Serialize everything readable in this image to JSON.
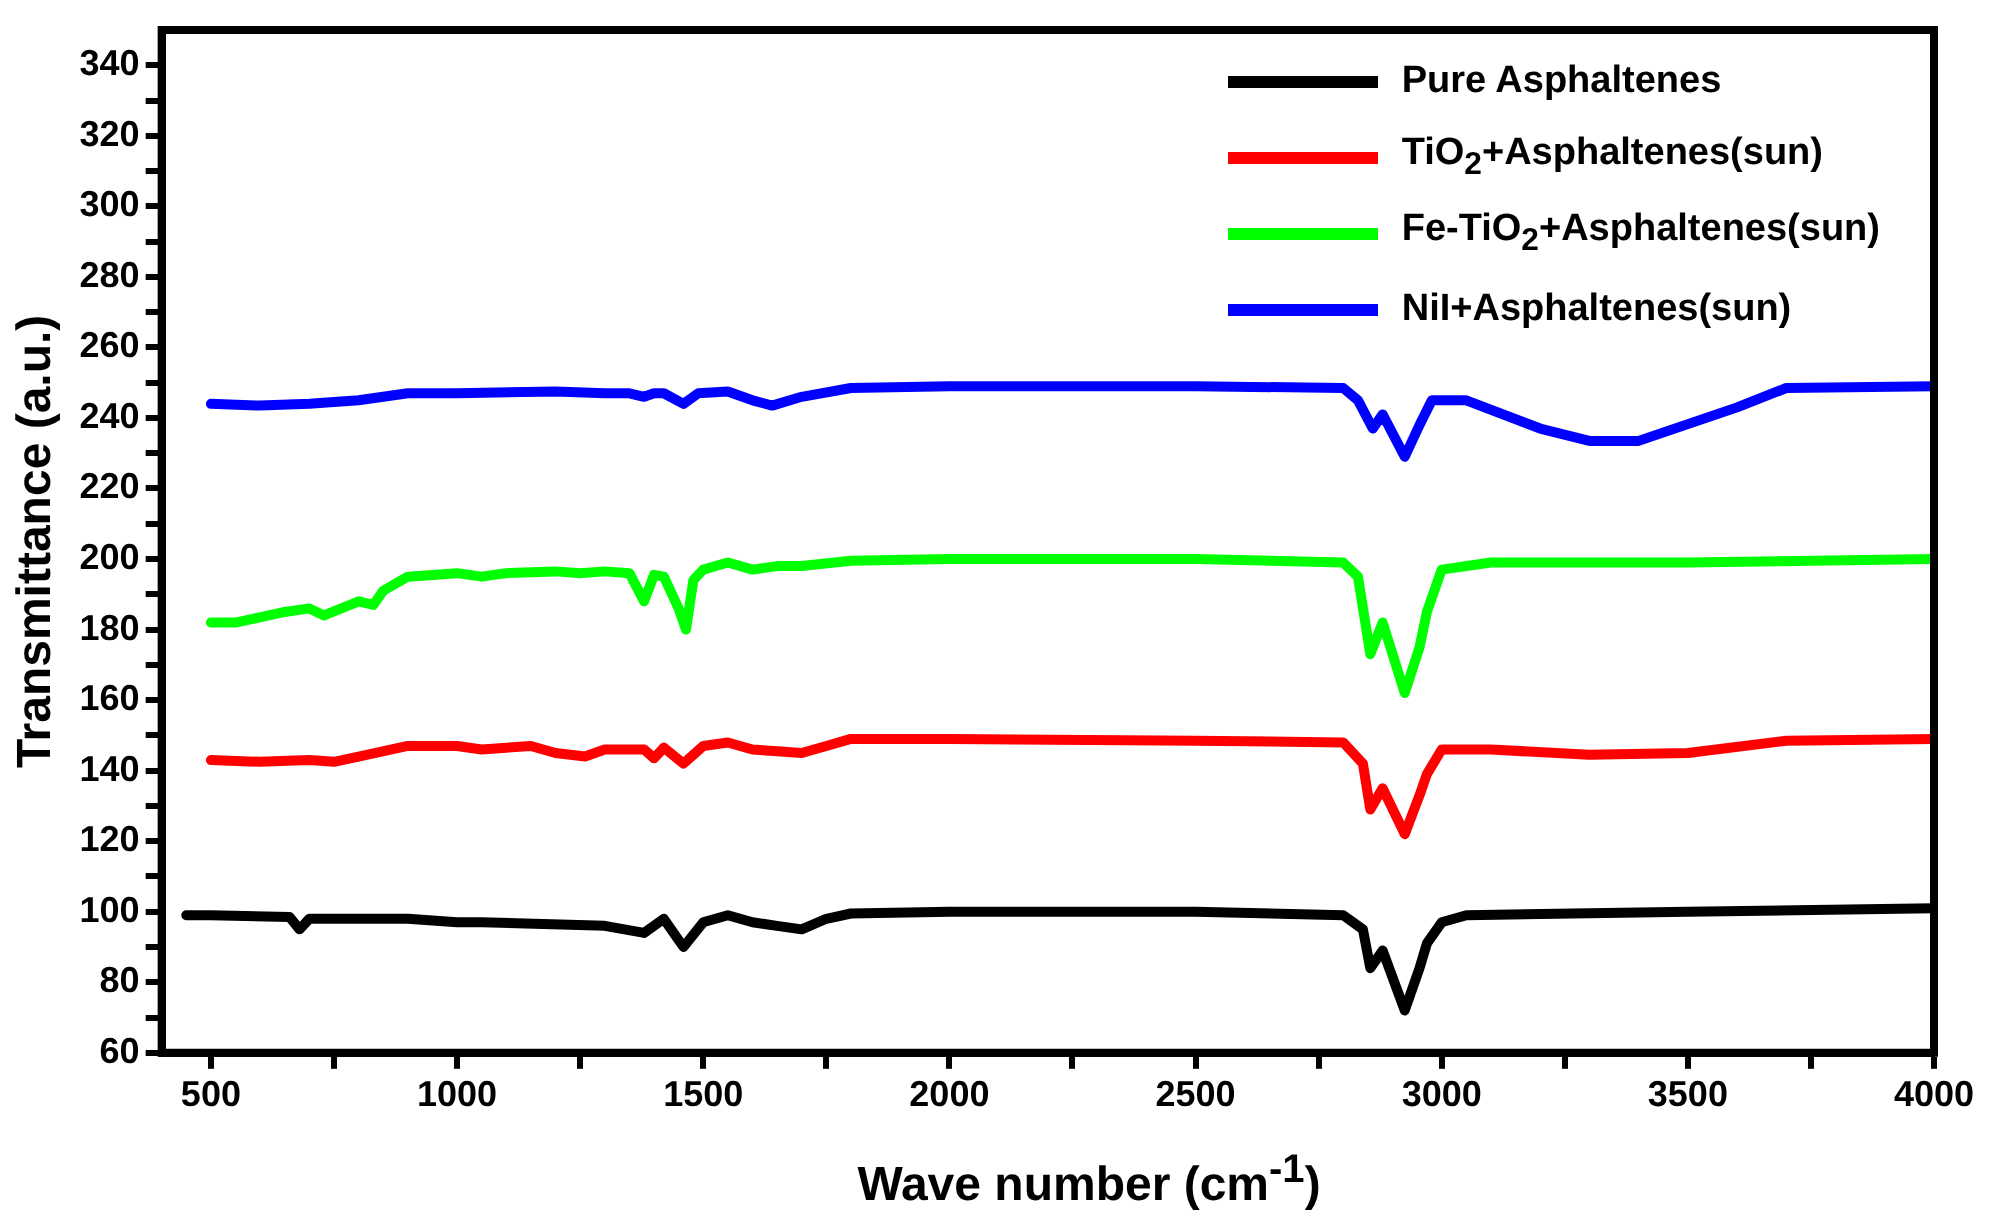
{
  "chart_data": {
    "type": "line",
    "xlabel": "Wave number (cm$^{-1}$)",
    "ylabel": "Transmittance (a.u.)",
    "xlim": [
      400,
      4000
    ],
    "xticks": [
      500,
      {
        "value": 750,
        "label": null
      },
      1000,
      {
        "value": 1250,
        "label": null
      },
      1500,
      {
        "value": 1750,
        "label": null
      },
      2000,
      {
        "value": 2250,
        "label": null
      },
      2500,
      {
        "value": 2750,
        "label": null
      },
      3000,
      {
        "value": 3250,
        "label": null
      },
      3500,
      {
        "value": 3750,
        "label": null
      },
      4000
    ],
    "ylim": [
      60,
      350
    ],
    "yticks": [
      60,
      {
        "value": 70,
        "label": null
      },
      80,
      {
        "value": 90,
        "label": null
      },
      100,
      {
        "value": 110,
        "label": null
      },
      120,
      {
        "value": 130,
        "label": null
      },
      140,
      {
        "value": 150,
        "label": null
      },
      160,
      {
        "value": 170,
        "label": null
      },
      180,
      {
        "value": 190,
        "label": null
      },
      200,
      {
        "value": 210,
        "label": null
      },
      220,
      {
        "value": 230,
        "label": null
      },
      240,
      {
        "value": 250,
        "label": null
      },
      260,
      {
        "value": 270,
        "label": null
      },
      280,
      {
        "value": 290,
        "label": null
      },
      300,
      {
        "value": 310,
        "label": null
      },
      320,
      {
        "value": 330,
        "label": null
      },
      340
    ],
    "grid": false,
    "legend": "top right",
    "marker": "none",
    "line_style": "solid",
    "series": [
      {
        "name": "Pure Asphaltenes",
        "color": "#000000",
        "x": [
          450,
          500,
          660,
          680,
          700,
          900,
          1000,
          1050,
          1300,
          1380,
          1420,
          1460,
          1500,
          1550,
          1600,
          1650,
          1700,
          1750,
          1800,
          2000,
          2500,
          2800,
          2840,
          2855,
          2880,
          2925,
          2955,
          2970,
          3000,
          3050,
          3500,
          4000
        ],
        "values": [
          99,
          99,
          98.5,
          95,
          98,
          98,
          97,
          97,
          96,
          94,
          98,
          90,
          97,
          99,
          97,
          96,
          95,
          98,
          99.5,
          100,
          100,
          99,
          95,
          84,
          89,
          72,
          84,
          91,
          97,
          99,
          100,
          101
        ]
      },
      {
        "name": "TiO$_{2}$+Asphaltenes(sun)",
        "color": "#ff0000",
        "x": [
          500,
          600,
          700,
          750,
          800,
          900,
          1000,
          1050,
          1150,
          1200,
          1260,
          1300,
          1380,
          1400,
          1420,
          1460,
          1500,
          1550,
          1600,
          1650,
          1700,
          1750,
          1800,
          2000,
          2500,
          2800,
          2840,
          2855,
          2880,
          2925,
          2955,
          2970,
          3000,
          3100,
          3300,
          3500,
          3700,
          4000
        ],
        "values": [
          143,
          142.5,
          143,
          142.5,
          144,
          147,
          147,
          146,
          147,
          145,
          144,
          146,
          146,
          143.5,
          146.5,
          142,
          147,
          148,
          146,
          145.5,
          145,
          147,
          149,
          149,
          148.5,
          148,
          142,
          129,
          135,
          122,
          133,
          139,
          146,
          146,
          144.5,
          145,
          148.5,
          149
        ]
      },
      {
        "name": "Fe-TiO$_{2}$+Asphaltenes(sun)",
        "color": "#00ff00",
        "x": [
          500,
          550,
          650,
          700,
          730,
          800,
          830,
          850,
          900,
          1000,
          1050,
          1100,
          1200,
          1250,
          1300,
          1350,
          1380,
          1400,
          1420,
          1450,
          1465,
          1480,
          1500,
          1550,
          1600,
          1650,
          1700,
          1800,
          2000,
          2500,
          2800,
          2830,
          2855,
          2880,
          2925,
          2955,
          2970,
          3000,
          3100,
          3500,
          4000
        ],
        "values": [
          182,
          182,
          185,
          186,
          184,
          188,
          187,
          191,
          195,
          196,
          195,
          196,
          196.5,
          196,
          196.5,
          196,
          188,
          195.5,
          195,
          186,
          180,
          194,
          197,
          199,
          197,
          198,
          198,
          199.5,
          200,
          200,
          199,
          195,
          173,
          182,
          162,
          175,
          185,
          197,
          199,
          199,
          200
        ]
      },
      {
        "name": "NiI+Asphaltenes(sun)",
        "color": "#0000ff",
        "x": [
          500,
          600,
          700,
          800,
          900,
          1000,
          1200,
          1300,
          1350,
          1380,
          1400,
          1420,
          1460,
          1490,
          1550,
          1600,
          1640,
          1700,
          1800,
          2000,
          2500,
          2800,
          2830,
          2860,
          2880,
          2925,
          2955,
          2980,
          3050,
          3200,
          3300,
          3400,
          3600,
          3700,
          4000
        ],
        "values": [
          244,
          243.5,
          244,
          245,
          247,
          247,
          247.5,
          247,
          247,
          246,
          247,
          247,
          244,
          247,
          247.5,
          245,
          243.5,
          246,
          248.5,
          249,
          249,
          248.5,
          245,
          237,
          241,
          229,
          238,
          245,
          245,
          237,
          233.5,
          233.5,
          243,
          248.5,
          249
        ]
      }
    ]
  }
}
